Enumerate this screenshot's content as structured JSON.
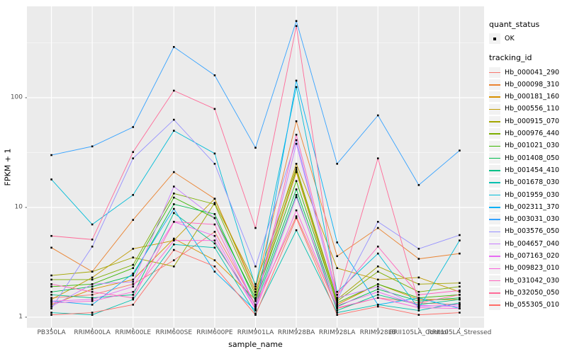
{
  "colors": {
    "background": "#FFFFFF",
    "panel": "#EBEBEB",
    "grid": "#FFFFFF",
    "axis_text": "#4D4D4D",
    "tick": "#333333",
    "point": "#000000",
    "legend_key_bg": "#F2F2F2"
  },
  "axes": {
    "x_title": "sample_name",
    "y_title": "FPKM + 1",
    "y_ticks": [
      "100",
      "10",
      "1"
    ]
  },
  "legend": {
    "quant_status_title": "quant_status",
    "quant_status_items": [
      "OK"
    ],
    "tracking_id_title": "tracking_id"
  },
  "chart_data": {
    "type": "line",
    "title": "",
    "xlabel": "sample_name",
    "ylabel": "FPKM + 1",
    "y_scale": "log10",
    "ylim": [
      1,
      600
    ],
    "y_major_gridlines": [
      1,
      10,
      100
    ],
    "y_minor_gridlines": [
      3.162,
      31.62,
      316.2
    ],
    "grid": true,
    "legend_position": "right",
    "point_shape": "filled-square-black",
    "categories": [
      "PB350LA",
      "RRIM600LA",
      "RRIM600LE",
      "RRIM600SE",
      "RRIM600PE",
      "RRIM901LA",
      "RRIM928BA",
      "RRIM928LA",
      "RRIM928LB",
      "RRII105LA_Control",
      "RRII105LA_Stressed"
    ],
    "series": [
      {
        "name": "Hb_000041_290",
        "color": "#F8766D",
        "values": [
          1.5,
          1.6,
          2.0,
          3.3,
          6.0,
          1.3,
          8.3,
          1.2,
          1.5,
          1.35,
          1.3
        ]
      },
      {
        "name": "Hb_000098_310",
        "color": "#EA8331",
        "values": [
          4.3,
          2.6,
          7.7,
          21,
          12,
          1.8,
          61,
          3.6,
          6.5,
          3.4,
          3.8
        ]
      },
      {
        "name": "Hb_000181_160",
        "color": "#D89000",
        "values": [
          1.3,
          1.8,
          2.2,
          5.2,
          3.3,
          1.45,
          21,
          1.3,
          2.0,
          1.45,
          1.45
        ]
      },
      {
        "name": "Hb_000556_110",
        "color": "#C09B00",
        "values": [
          1.45,
          2.3,
          4.2,
          5.0,
          12,
          1.7,
          25,
          2.8,
          2.2,
          2.3,
          1.7
        ]
      },
      {
        "name": "Hb_000915_070",
        "color": "#A3A500",
        "values": [
          2.4,
          2.6,
          3.5,
          2.9,
          11,
          2.0,
          23,
          1.45,
          2.9,
          2.0,
          2.05
        ]
      },
      {
        "name": "Hb_000976_440",
        "color": "#7CAE00",
        "values": [
          2.2,
          2.2,
          3.0,
          13.4,
          10.7,
          1.6,
          22,
          1.4,
          2.6,
          1.7,
          1.9
        ]
      },
      {
        "name": "Hb_001021_030",
        "color": "#39B600",
        "values": [
          1.9,
          2.0,
          2.8,
          12.3,
          8.0,
          1.5,
          17.4,
          1.35,
          2.0,
          1.5,
          1.6
        ]
      },
      {
        "name": "Hb_001408_050",
        "color": "#00BB4E",
        "values": [
          1.7,
          1.9,
          2.4,
          10.7,
          8.7,
          1.4,
          14.6,
          1.25,
          1.8,
          1.4,
          1.5
        ]
      },
      {
        "name": "Hb_001454_410",
        "color": "#00C087",
        "values": [
          1.6,
          1.5,
          1.6,
          8.9,
          4.7,
          1.3,
          13,
          1.15,
          1.6,
          1.3,
          1.45
        ]
      },
      {
        "name": "Hb_001678_030",
        "color": "#00C0AF",
        "values": [
          1.1,
          1.05,
          1.45,
          4.6,
          4.3,
          1.08,
          6.2,
          1.1,
          1.3,
          1.15,
          1.35
        ]
      },
      {
        "name": "Hb_001959_030",
        "color": "#00BCD8",
        "values": [
          18,
          7,
          13,
          50,
          31,
          1.9,
          125,
          1.7,
          3.8,
          1.2,
          5.0
        ]
      },
      {
        "name": "Hb_002311_370",
        "color": "#00B0F6",
        "values": [
          1.4,
          1.3,
          2.5,
          9.7,
          2.6,
          1.15,
          143,
          4.8,
          1.3,
          1.5,
          1.2
        ]
      },
      {
        "name": "Hb_003031_030",
        "color": "#35A2FF",
        "values": [
          30,
          36,
          54,
          290,
          160,
          35,
          500,
          25,
          69,
          16,
          33
        ]
      },
      {
        "name": "Hb_003576_050",
        "color": "#9590FF",
        "values": [
          1.2,
          4.4,
          28,
          63,
          25,
          2.9,
          41,
          1.45,
          7.4,
          4.2,
          5.6
        ]
      },
      {
        "name": "Hb_004657_040",
        "color": "#C77CFF",
        "values": [
          1.25,
          2.0,
          2.1,
          15.5,
          8.0,
          1.25,
          38,
          1.5,
          1.9,
          1.25,
          1.3
        ]
      },
      {
        "name": "Hb_007163_020",
        "color": "#E76BF3",
        "values": [
          1.4,
          1.45,
          1.9,
          7.4,
          5.5,
          1.2,
          12.4,
          1.28,
          1.7,
          1.28,
          1.25
        ]
      },
      {
        "name": "Hb_009823_010",
        "color": "#FA62DB",
        "values": [
          1.35,
          1.4,
          1.7,
          5.0,
          5.0,
          1.18,
          9.4,
          1.22,
          1.5,
          1.22,
          1.2
        ]
      },
      {
        "name": "Hb_031042_030",
        "color": "#FF62BC",
        "values": [
          2.0,
          1.7,
          1.5,
          7.4,
          7.0,
          1.25,
          46,
          1.6,
          4.4,
          1.6,
          1.75
        ]
      },
      {
        "name": "Hb_032050_050",
        "color": "#FF6A98",
        "values": [
          5.5,
          5.1,
          32,
          116,
          79,
          6.5,
          450,
          1.5,
          28,
          1.35,
          1.6
        ]
      },
      {
        "name": "Hb_055305_010",
        "color": "#FF6C67",
        "values": [
          1.05,
          1.1,
          1.3,
          4.1,
          2.9,
          1.05,
          8.0,
          1.05,
          1.25,
          1.05,
          1.1
        ]
      }
    ]
  }
}
